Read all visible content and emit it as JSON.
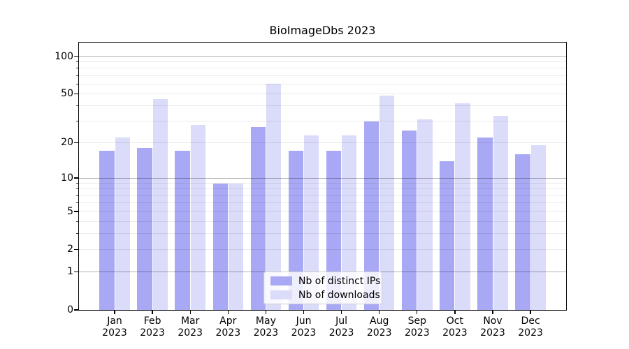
{
  "title": "BioImageDbs 2023",
  "colors": {
    "background": "#ffffff",
    "ips_bar": "#a8a8f5",
    "downloads_bar": "#dbdbfa",
    "spine": "#000000",
    "grid_major": "rgba(0,0,0,0.30)",
    "grid_minor": "rgba(0,0,0,0.08)",
    "legend_border": "#cccccc",
    "legend_background": "rgba(255,255,255,0.8)",
    "text": "#000000"
  },
  "chart_data": {
    "type": "bar",
    "title": "BioImageDbs 2023",
    "categories": [
      "Jan 2023",
      "Feb 2023",
      "Mar 2023",
      "Apr 2023",
      "May 2023",
      "Jun 2023",
      "Jul 2023",
      "Aug 2023",
      "Sep 2023",
      "Oct 2023",
      "Nov 2023",
      "Dec 2023"
    ],
    "category_line1": [
      "Jan",
      "Feb",
      "Mar",
      "Apr",
      "May",
      "Jun",
      "Jul",
      "Aug",
      "Sep",
      "Oct",
      "Nov",
      "Dec"
    ],
    "category_line2": "2023",
    "series": [
      {
        "name": "Nb of distinct IPs",
        "color": "#a8a8f5",
        "values": [
          17,
          18,
          17,
          9,
          27,
          17,
          17,
          30,
          25,
          14,
          22,
          16
        ]
      },
      {
        "name": "Nb of downloads",
        "color": "#dbdbfa",
        "values": [
          22,
          45,
          28,
          9,
          60,
          23,
          23,
          48,
          31,
          42,
          33,
          19
        ]
      }
    ],
    "xlabel": "",
    "ylabel": "",
    "yscale": "log1p",
    "ylim": [
      0,
      128.4
    ],
    "yticks": [
      100,
      50,
      20,
      10,
      5,
      2,
      1,
      0
    ],
    "grid": true,
    "grid_major_values": [
      1,
      10,
      100
    ],
    "grid_minor_values": [
      2,
      3,
      4,
      5,
      6,
      7,
      8,
      9,
      20,
      30,
      40,
      50,
      60,
      70,
      80,
      90
    ],
    "legend_position": "lower center"
  },
  "legend": {
    "items": [
      {
        "label": "Nb of distinct IPs"
      },
      {
        "label": "Nb of downloads"
      }
    ]
  }
}
